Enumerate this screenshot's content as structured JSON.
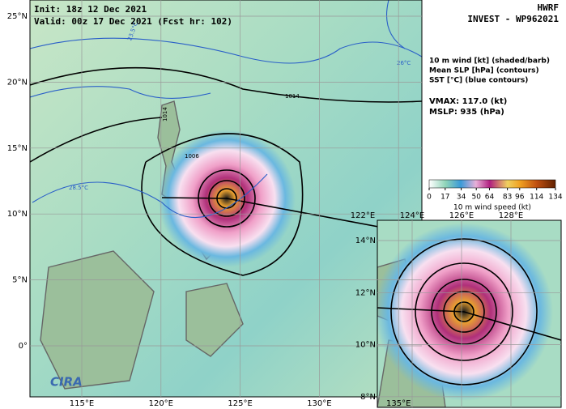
{
  "header": {
    "init": "Init: 18z 12 Dec 2021",
    "valid": "Valid: 00z 17 Dec 2021 (Fcst hr: 102)",
    "model": "HWRF",
    "storm": "INVEST - WP962021"
  },
  "legend": {
    "wind": "10 m wind [kt] (shaded/barb)",
    "slp": "Mean SLP [hPa] (contours)",
    "sst": "SST [°C] (blue contours)",
    "vmax": "VMAX: 117.0 (kt)",
    "mslp": "MSLP:  935 (hPa)"
  },
  "colorbar": {
    "ticks": [
      0,
      17,
      34,
      50,
      64,
      83,
      96,
      114,
      134
    ],
    "label": "10 m wind speed (kt)"
  },
  "map": {
    "lat_labels": [
      "25°N",
      "20°N",
      "15°N",
      "10°N",
      "5°N",
      "0°"
    ],
    "lon_labels": [
      "115°E",
      "120°E",
      "125°E",
      "130°E",
      "135°E"
    ],
    "contour_labels": {
      "slp_north": "1014",
      "slp_west": "1014",
      "slp_inner": "1006",
      "sst_26": "26°C",
      "sst_23": "23.5°C",
      "sst_28": "28.5°C"
    },
    "logo": "CIRA"
  },
  "inset": {
    "lon_labels": [
      "122°E",
      "124°E",
      "126°E",
      "128°E"
    ],
    "lat_labels": [
      "14°N",
      "12°N",
      "10°N",
      "8°N"
    ]
  }
}
